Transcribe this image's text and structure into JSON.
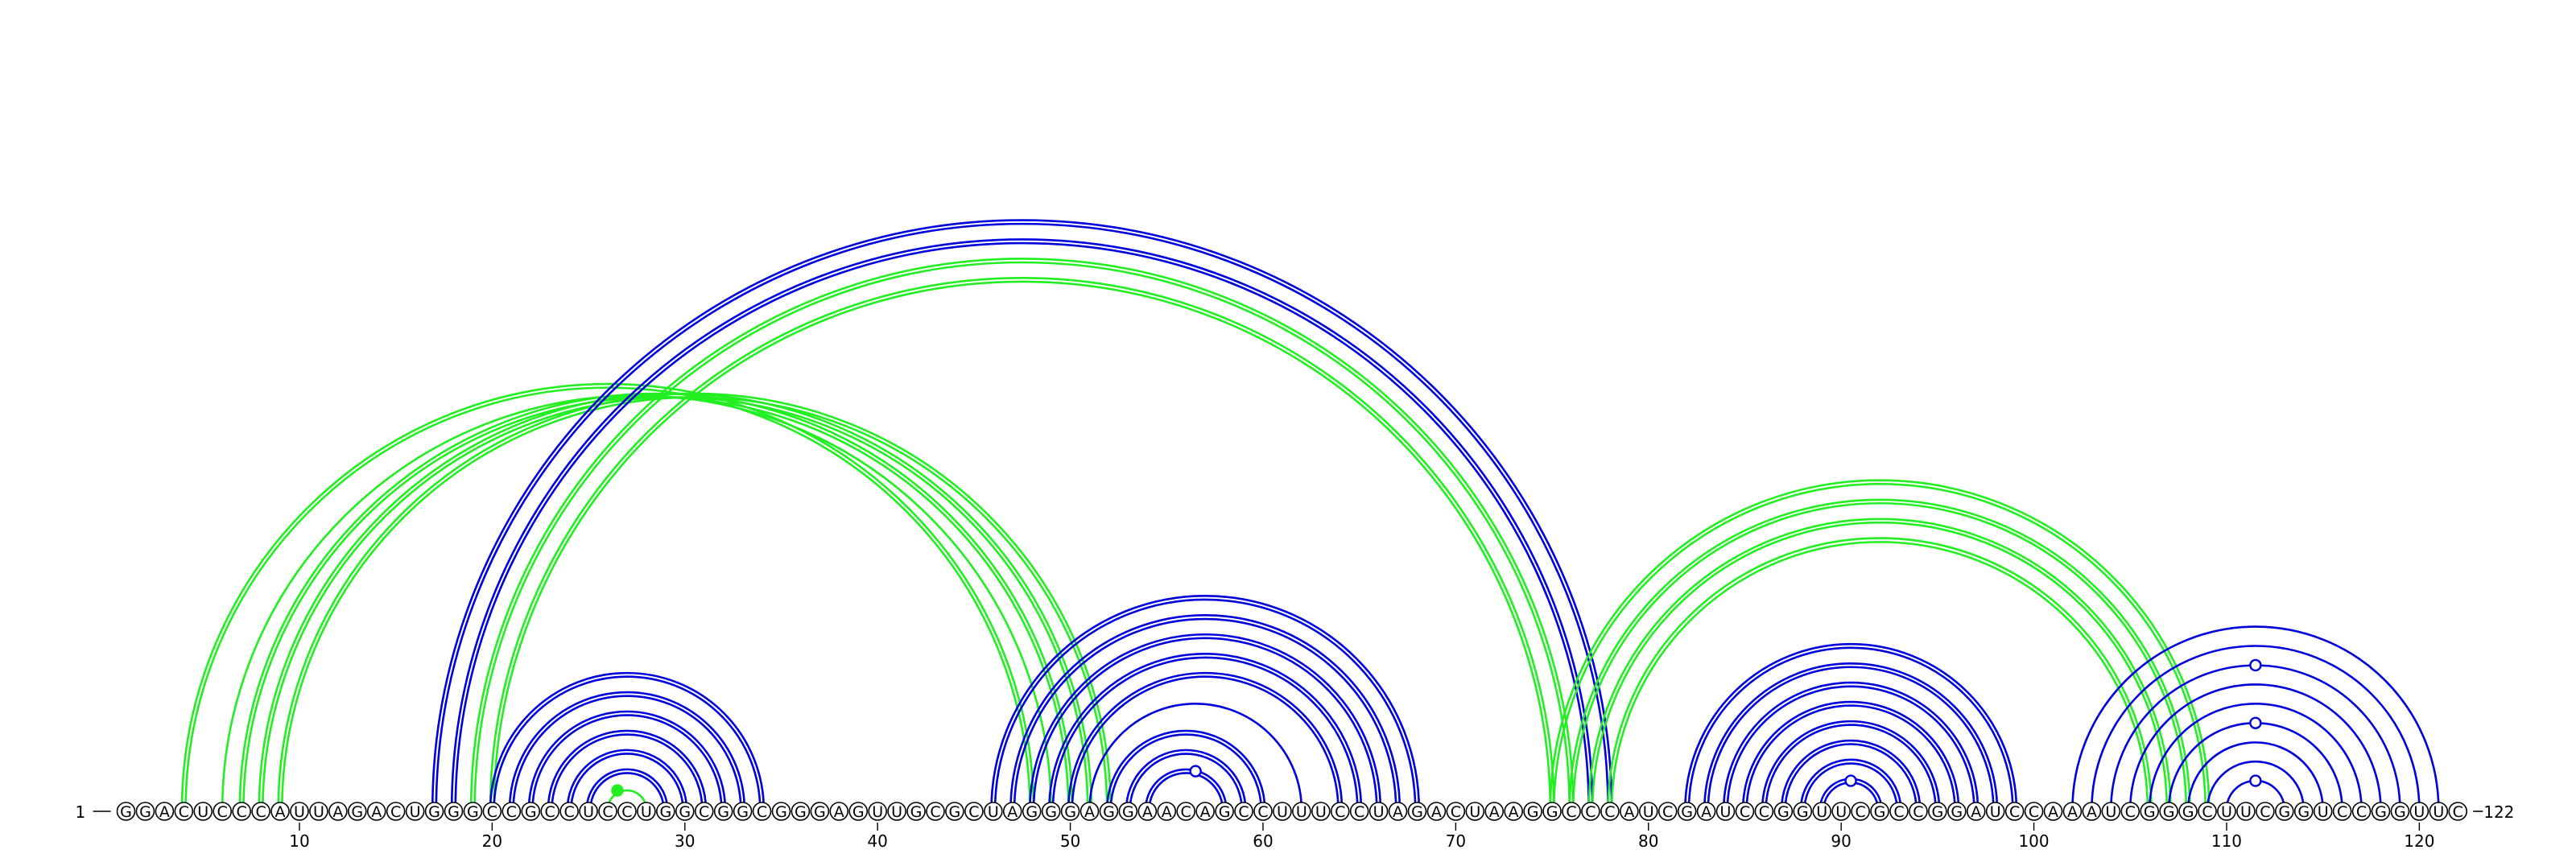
{
  "chart_data": {
    "type": "arc-diagram",
    "sequence": "GGACUCCCAUUAGACUGGGCCGCCUCCUGGCGGCGGGAGUUGCGCUAGGGAGGAACAGCCUUUCCUAGACUAAGGCCCAUCGAUCCGGUUCGCCGGAUCCAAAUCGGGCUUCGGUCCGGUUC",
    "length": 122,
    "start_label": "1",
    "end_label": "122",
    "ticks": [
      "10",
      "20",
      "30",
      "40",
      "50",
      "60",
      "70",
      "80",
      "90",
      "100",
      "110",
      "120"
    ],
    "colors": {
      "blue": "#0000dd",
      "green": "#22ee22",
      "nucleotide_outline": "#000000"
    },
    "series": [
      {
        "color": "green",
        "style": "double",
        "pairs": [
          [
            4,
            48
          ],
          [
            7,
            50
          ],
          [
            8,
            51
          ],
          [
            9,
            52
          ]
        ]
      },
      {
        "color": "green",
        "style": "single",
        "pairs": [
          [
            6,
            49
          ]
        ]
      },
      {
        "color": "blue",
        "style": "double",
        "pairs": [
          [
            17,
            78
          ],
          [
            18,
            77
          ]
        ]
      },
      {
        "color": "green",
        "style": "double",
        "pairs": [
          [
            19,
            76
          ],
          [
            20,
            75
          ]
        ]
      },
      {
        "color": "blue",
        "style": "double",
        "pairs": [
          [
            20,
            34
          ],
          [
            21,
            33
          ],
          [
            22,
            32
          ],
          [
            23,
            31
          ],
          [
            24,
            30
          ],
          [
            25,
            29
          ]
        ]
      },
      {
        "color": "green",
        "style": "single",
        "pairs": [
          [
            26,
            28
          ]
        ]
      },
      {
        "color": "blue",
        "style": "double",
        "pairs": [
          [
            46,
            68
          ],
          [
            47,
            67
          ],
          [
            48,
            66
          ],
          [
            49,
            65
          ],
          [
            50,
            64
          ],
          [
            52,
            60
          ],
          [
            53,
            59
          ],
          [
            54,
            58
          ]
        ]
      },
      {
        "color": "blue",
        "style": "single",
        "pairs": [
          [
            51,
            62
          ]
        ]
      },
      {
        "color": "green",
        "style": "double",
        "pairs": [
          [
            75,
            109
          ],
          [
            76,
            108
          ],
          [
            77,
            107
          ],
          [
            78,
            106
          ]
        ]
      },
      {
        "color": "blue",
        "style": "double",
        "pairs": [
          [
            82,
            99
          ],
          [
            83,
            98
          ],
          [
            84,
            97
          ],
          [
            85,
            96
          ],
          [
            86,
            95
          ],
          [
            87,
            94
          ],
          [
            88,
            93
          ],
          [
            89,
            92
          ]
        ]
      },
      {
        "color": "blue",
        "style": "single",
        "pairs": [
          [
            102,
            121
          ],
          [
            103,
            120
          ],
          [
            104,
            119
          ],
          [
            105,
            118
          ],
          [
            106,
            117
          ],
          [
            107,
            116
          ],
          [
            108,
            115
          ],
          [
            109,
            114
          ],
          [
            110,
            113
          ]
        ]
      }
    ],
    "markers": [
      {
        "position": 26.5,
        "type": "filled",
        "color": "green"
      },
      {
        "position": 56.5,
        "type": "open",
        "color": "blue"
      },
      {
        "position": 90.5,
        "type": "open",
        "color": "blue"
      },
      {
        "position": 111.5,
        "type": "open",
        "color": "blue"
      },
      {
        "position": 111.5,
        "type": "open",
        "color": "blue"
      },
      {
        "position": 111.5,
        "type": "open",
        "color": "blue"
      }
    ]
  }
}
